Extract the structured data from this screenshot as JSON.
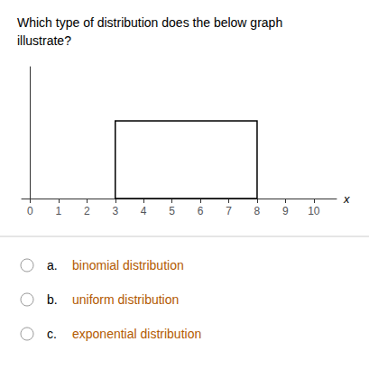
{
  "chart_data": {
    "type": "histogram",
    "title": "Which type of distribution does the below graph\nillustrate?",
    "bins": [
      3,
      8
    ],
    "values": [
      0.5
    ],
    "color": "#000000",
    "xlabel": "x",
    "xlim": [
      -0.3,
      10.8
    ],
    "xticks": [
      0,
      1,
      2,
      3,
      4,
      5,
      6,
      7,
      8,
      9,
      10
    ],
    "ylim": [
      0,
      0.85
    ],
    "tick_labels": "x",
    "grid": false,
    "annotations": [
      {
        "label": "a.",
        "text": "binomial distribution",
        "color": "#b35a00"
      },
      {
        "label": "b.",
        "text": "uniform distribution",
        "color": "#b35a00"
      },
      {
        "label": "c.",
        "text": "exponential distribution",
        "color": "#b35a00"
      }
    ]
  }
}
